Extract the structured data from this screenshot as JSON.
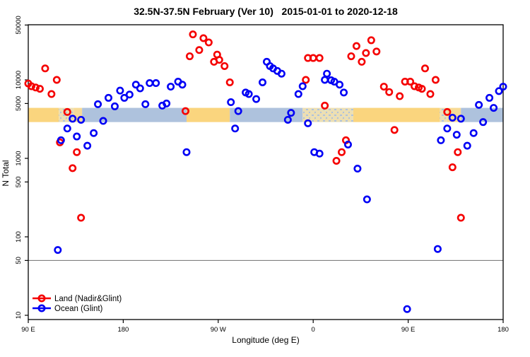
{
  "chart_data": {
    "type": "scatter",
    "title": "32.5N-37.5N February (Ver 10)   2015-01-01 to 2020-12-18",
    "xlabel": "Longitude (deg E)",
    "ylabel": "N Total",
    "x_axis": {
      "note": "axis spans 450 degrees of longitude starting at 90E heading east (wraps through 180, 90W, 0, 90E, 180)",
      "ticks": [
        {
          "deg": 0,
          "label": "90 E"
        },
        {
          "deg": 90,
          "label": "180"
        },
        {
          "deg": 180,
          "label": "90 W"
        },
        {
          "deg": 270,
          "label": "0"
        },
        {
          "deg": 360,
          "label": "90 E"
        },
        {
          "deg": 450,
          "label": "180"
        }
      ]
    },
    "y_axis": {
      "scale": "log10",
      "ticks": [
        50000,
        10000,
        5000,
        1000,
        500,
        100,
        50,
        10
      ],
      "range": [
        9,
        46000
      ]
    },
    "reference_line_y": 50,
    "land_ocean_strip": {
      "value_range": [
        2900,
        4400
      ],
      "segments": [
        {
          "from": 0,
          "to": 29,
          "type": "land"
        },
        {
          "from": 29,
          "to": 43,
          "type": "coast"
        },
        {
          "from": 43,
          "to": 51,
          "type": "land_pale"
        },
        {
          "from": 51,
          "to": 150,
          "type": "ocean"
        },
        {
          "from": 150,
          "to": 191,
          "type": "land"
        },
        {
          "from": 191,
          "to": 260,
          "type": "ocean"
        },
        {
          "from": 260,
          "to": 308,
          "type": "coast"
        },
        {
          "from": 308,
          "to": 390,
          "type": "land"
        },
        {
          "from": 390,
          "to": 397,
          "type": "coast"
        },
        {
          "from": 397,
          "to": 410,
          "type": "land_pale"
        },
        {
          "from": 410,
          "to": 450,
          "type": "ocean"
        }
      ],
      "colors": {
        "land": "#FAD57E",
        "ocean": "#AEC2DD",
        "coast": "#ECDFB4",
        "land_pale": "#F7DA96"
      }
    },
    "series": [
      {
        "name": "Land (Nadir&Glint)",
        "color": "#F50000",
        "points": [
          [
            0,
            9000
          ],
          [
            3,
            8300
          ],
          [
            7,
            8000
          ],
          [
            11,
            7700
          ],
          [
            16,
            14000
          ],
          [
            27,
            10000
          ],
          [
            22,
            6600
          ],
          [
            37,
            3900
          ],
          [
            30,
            1600
          ],
          [
            46,
            1200
          ],
          [
            42,
            750
          ],
          [
            50,
            175
          ],
          [
            153,
            20000
          ],
          [
            156,
            38000
          ],
          [
            162,
            24000
          ],
          [
            166,
            34000
          ],
          [
            171,
            30000
          ],
          [
            176,
            17000
          ],
          [
            179,
            21000
          ],
          [
            181,
            18000
          ],
          [
            186,
            15000
          ],
          [
            191,
            9300
          ],
          [
            149,
            4000
          ],
          [
            263,
            10000
          ],
          [
            265,
            19000
          ],
          [
            270,
            19000
          ],
          [
            276,
            19000
          ],
          [
            281,
            4700
          ],
          [
            292,
            930
          ],
          [
            297,
            1200
          ],
          [
            301,
            1700
          ],
          [
            347,
            2300
          ],
          [
            306,
            20000
          ],
          [
            311,
            27000
          ],
          [
            316,
            17000
          ],
          [
            320,
            22000
          ],
          [
            325,
            32000
          ],
          [
            330,
            23000
          ],
          [
            337,
            8200
          ],
          [
            342,
            7000
          ],
          [
            352,
            6200
          ],
          [
            357,
            9500
          ],
          [
            362,
            9500
          ],
          [
            366,
            8300
          ],
          [
            370,
            8000
          ],
          [
            373,
            7700
          ],
          [
            376,
            14000
          ],
          [
            381,
            6600
          ],
          [
            386,
            10000
          ],
          [
            397,
            3900
          ],
          [
            402,
            770
          ],
          [
            407,
            1200
          ],
          [
            410,
            175
          ]
        ]
      },
      {
        "name": "Ocean (Glint)",
        "color": "#0000F5",
        "points": [
          [
            28,
            68
          ],
          [
            31,
            1700
          ],
          [
            37,
            2400
          ],
          [
            42,
            3200
          ],
          [
            46,
            1900
          ],
          [
            50,
            3100
          ],
          [
            56,
            1450
          ],
          [
            62,
            2100
          ],
          [
            66,
            4900
          ],
          [
            71,
            3000
          ],
          [
            76,
            5900
          ],
          [
            82,
            4600
          ],
          [
            87,
            7300
          ],
          [
            91,
            5900
          ],
          [
            96,
            6500
          ],
          [
            102,
            8700
          ],
          [
            106,
            7800
          ],
          [
            111,
            4900
          ],
          [
            115,
            9100
          ],
          [
            121,
            9100
          ],
          [
            127,
            4700
          ],
          [
            131,
            5000
          ],
          [
            135,
            8200
          ],
          [
            142,
            9500
          ],
          [
            146,
            8700
          ],
          [
            150,
            1200
          ],
          [
            192,
            5200
          ],
          [
            196,
            2400
          ],
          [
            199,
            4000
          ],
          [
            206,
            6900
          ],
          [
            209,
            6600
          ],
          [
            216,
            5700
          ],
          [
            222,
            9300
          ],
          [
            226,
            17000
          ],
          [
            229,
            15000
          ],
          [
            232,
            14000
          ],
          [
            236,
            13000
          ],
          [
            240,
            12000
          ],
          [
            246,
            3100
          ],
          [
            249,
            3800
          ],
          [
            256,
            6600
          ],
          [
            260,
            8300
          ],
          [
            265,
            2800
          ],
          [
            271,
            1200
          ],
          [
            276,
            1150
          ],
          [
            281,
            10000
          ],
          [
            283,
            12000
          ],
          [
            287,
            9900
          ],
          [
            290,
            9500
          ],
          [
            295,
            8700
          ],
          [
            299,
            6900
          ],
          [
            303,
            1500
          ],
          [
            312,
            740
          ],
          [
            321,
            300
          ],
          [
            359,
            12
          ],
          [
            388,
            70
          ],
          [
            391,
            1700
          ],
          [
            397,
            2400
          ],
          [
            402,
            3300
          ],
          [
            406,
            2000
          ],
          [
            410,
            3200
          ],
          [
            416,
            1450
          ],
          [
            422,
            2100
          ],
          [
            427,
            4800
          ],
          [
            431,
            2900
          ],
          [
            437,
            5900
          ],
          [
            441,
            4400
          ],
          [
            446,
            7200
          ],
          [
            450,
            8200
          ]
        ]
      }
    ],
    "legend": {
      "position": "bottom-left",
      "entries": [
        "Land (Nadir&Glint)",
        "Ocean (Glint)"
      ]
    }
  }
}
